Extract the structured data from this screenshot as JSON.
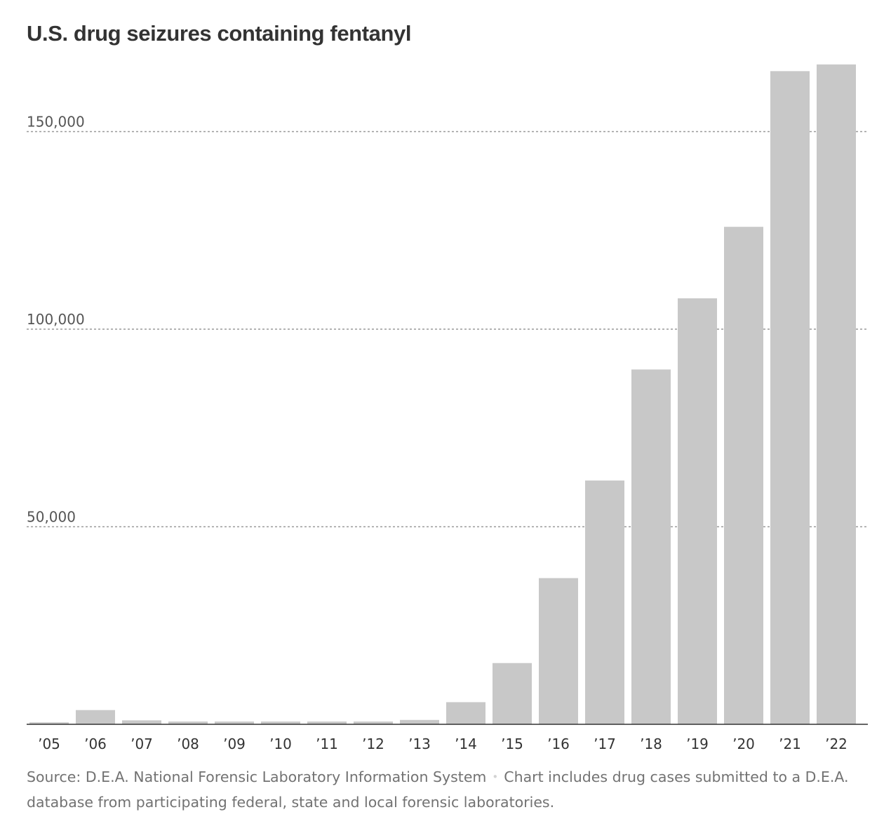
{
  "chart_data": {
    "type": "bar",
    "title": "U.S. drug seizures containing fentanyl",
    "categories": [
      "’05",
      "’06",
      "’07",
      "’08",
      "’09",
      "’10",
      "’11",
      "’12",
      "’13",
      "’14",
      "’15",
      "’16",
      "’17",
      "’18",
      "’19",
      "’20",
      "’21",
      "’22"
    ],
    "values": [
      500,
      3600,
      1000,
      700,
      700,
      700,
      700,
      700,
      1100,
      5600,
      15500,
      37000,
      61700,
      89800,
      107800,
      125900,
      165300,
      167000
    ],
    "yticks": [
      50000,
      100000,
      150000
    ],
    "ytick_labels": [
      "50,000",
      "100,000",
      "150,000"
    ],
    "ylim": [
      0,
      167000
    ],
    "grid": true,
    "bar_color": "#c8c8c8",
    "xlabel": "",
    "ylabel": ""
  },
  "source": {
    "label": "Source: D.E.A. National Forensic Laboratory Information System",
    "separator": "•",
    "note": "Chart includes drug cases submitted to a D.E.A. database from participating federal, state and local forensic laboratories."
  }
}
